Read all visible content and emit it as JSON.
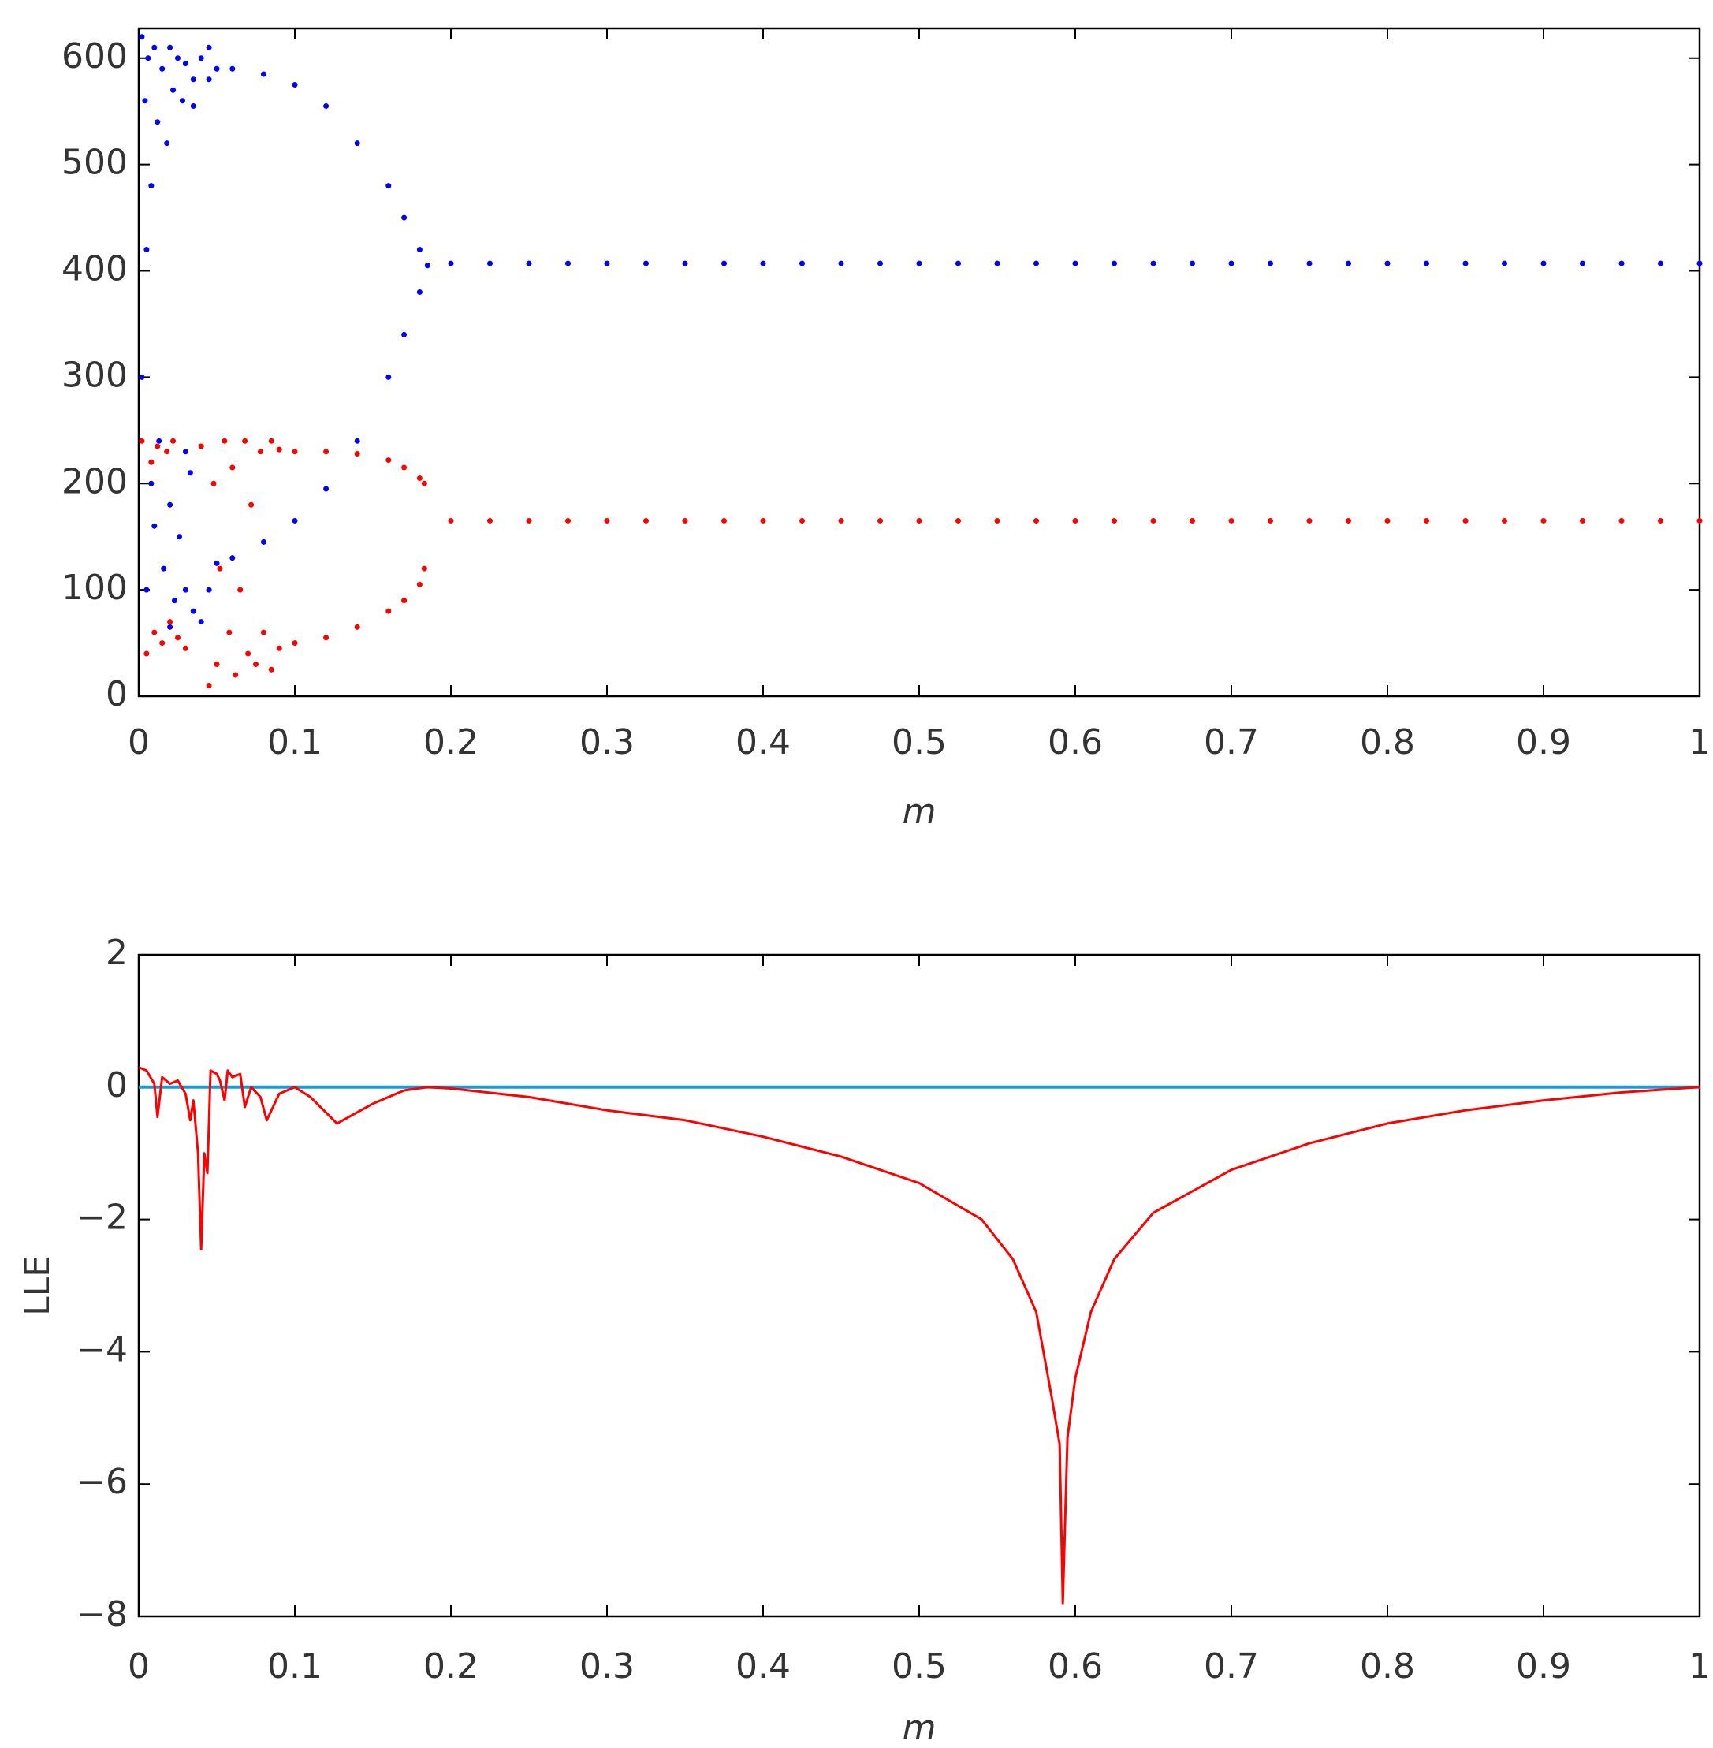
{
  "chart_data": [
    {
      "type": "scatter",
      "xlabel": "m",
      "xlim": [
        0,
        1
      ],
      "ylim": [
        0,
        628
      ],
      "xticks": [
        0,
        0.1,
        0.2,
        0.3,
        0.4,
        0.5,
        0.6,
        0.7,
        0.8,
        0.9,
        1
      ],
      "yticks": [
        0,
        100,
        200,
        300,
        400,
        500,
        600
      ],
      "series": [
        {
          "color": "#0000ff",
          "x": [
            0.002,
            0.004,
            0.006,
            0.008,
            0.01,
            0.012,
            0.015,
            0.018,
            0.02,
            0.022,
            0.025,
            0.028,
            0.03,
            0.035,
            0.04,
            0.045,
            0.002,
            0.005,
            0.008,
            0.01,
            0.013,
            0.016,
            0.02,
            0.023,
            0.026,
            0.03,
            0.033,
            0.035,
            0.04,
            0.045,
            0.02,
            0.03,
            0.005,
            0.035,
            0.045,
            0.05,
            0.06,
            0.08,
            0.1,
            0.12,
            0.14,
            0.16,
            0.17,
            0.18,
            0.185,
            0.05,
            0.06,
            0.08,
            0.1,
            0.12,
            0.14,
            0.16,
            0.17,
            0.18,
            0.2,
            0.225,
            0.25,
            0.275,
            0.3,
            0.325,
            0.35,
            0.375,
            0.4,
            0.425,
            0.45,
            0.475,
            0.5,
            0.525,
            0.55,
            0.575,
            0.6,
            0.625,
            0.65,
            0.675,
            0.7,
            0.725,
            0.75,
            0.775,
            0.8,
            0.825,
            0.85,
            0.875,
            0.9,
            0.925,
            0.95,
            0.975,
            1
          ],
          "values": [
            620,
            560,
            600,
            480,
            610,
            540,
            590,
            520,
            610,
            570,
            600,
            560,
            595,
            580,
            600,
            610,
            300,
            100,
            200,
            160,
            240,
            120,
            180,
            90,
            150,
            100,
            210,
            80,
            70,
            100,
            65,
            230,
            420,
            555,
            580,
            590,
            590,
            585,
            575,
            555,
            520,
            480,
            450,
            420,
            405,
            125,
            130,
            145,
            165,
            195,
            240,
            300,
            340,
            380,
            407,
            407,
            407,
            407,
            407,
            407,
            407,
            407,
            407,
            407,
            407,
            407,
            407,
            407,
            407,
            407,
            407,
            407,
            407,
            407,
            407,
            407,
            407,
            407,
            407,
            407,
            407,
            407,
            407,
            407,
            407,
            407,
            407
          ]
        },
        {
          "color": "#ff0000",
          "x": [
            0.002,
            0.005,
            0.008,
            0.01,
            0.012,
            0.015,
            0.018,
            0.02,
            0.022,
            0.025,
            0.03,
            0.04,
            0.045,
            0.048,
            0.05,
            0.052,
            0.055,
            0.058,
            0.06,
            0.062,
            0.065,
            0.068,
            0.07,
            0.072,
            0.075,
            0.078,
            0.08,
            0.085,
            0.085,
            0.09,
            0.1,
            0.12,
            0.14,
            0.16,
            0.17,
            0.18,
            0.183,
            0.09,
            0.1,
            0.12,
            0.14,
            0.16,
            0.17,
            0.18,
            0.183,
            0.2,
            0.225,
            0.25,
            0.275,
            0.3,
            0.325,
            0.35,
            0.375,
            0.4,
            0.425,
            0.45,
            0.475,
            0.5,
            0.525,
            0.55,
            0.575,
            0.6,
            0.625,
            0.65,
            0.675,
            0.7,
            0.725,
            0.75,
            0.775,
            0.8,
            0.825,
            0.85,
            0.875,
            0.9,
            0.925,
            0.95,
            0.975,
            1
          ],
          "values": [
            240,
            40,
            220,
            60,
            235,
            50,
            230,
            70,
            240,
            55,
            45,
            235,
            10,
            200,
            30,
            120,
            240,
            60,
            215,
            20,
            100,
            240,
            40,
            180,
            30,
            230,
            60,
            240,
            25,
            232,
            230,
            230,
            228,
            222,
            215,
            205,
            200,
            45,
            50,
            55,
            65,
            80,
            90,
            105,
            120,
            165,
            165,
            165,
            165,
            165,
            165,
            165,
            165,
            165,
            165,
            165,
            165,
            165,
            165,
            165,
            165,
            165,
            165,
            165,
            165,
            165,
            165,
            165,
            165,
            165,
            165,
            165,
            165,
            165,
            165,
            165,
            165,
            165
          ]
        }
      ]
    },
    {
      "type": "line",
      "xlabel": "m",
      "ylabel": "LLE",
      "xlim": [
        0,
        1
      ],
      "ylim": [
        -8,
        2
      ],
      "xticks": [
        0,
        0.1,
        0.2,
        0.3,
        0.4,
        0.5,
        0.6,
        0.7,
        0.8,
        0.9,
        1
      ],
      "yticks": [
        {
          "value": -8,
          "label": "−8"
        },
        {
          "value": -6,
          "label": "−6"
        },
        {
          "value": -4,
          "label": "−4"
        },
        {
          "value": -2,
          "label": "−2"
        },
        0,
        2
      ],
      "reference_line": {
        "value": 0,
        "color": "#1a9ad6"
      },
      "x": [
        0,
        0.005,
        0.01,
        0.012,
        0.015,
        0.02,
        0.025,
        0.03,
        0.033,
        0.035,
        0.038,
        0.04,
        0.042,
        0.044,
        0.046,
        0.05,
        0.052,
        0.055,
        0.057,
        0.06,
        0.065,
        0.068,
        0.072,
        0.078,
        0.082,
        0.09,
        0.1,
        0.11,
        0.127,
        0.15,
        0.17,
        0.185,
        0.2,
        0.25,
        0.3,
        0.35,
        0.4,
        0.45,
        0.5,
        0.54,
        0.56,
        0.575,
        0.585,
        0.59,
        0.592,
        0.595,
        0.6,
        0.61,
        0.625,
        0.65,
        0.7,
        0.75,
        0.8,
        0.85,
        0.9,
        0.95,
        1
      ],
      "series": [
        {
          "color": "#ff0000",
          "values": [
            0.3,
            0.25,
            0.05,
            -0.45,
            0.15,
            0.05,
            0.1,
            -0.1,
            -0.5,
            -0.2,
            -1.0,
            -2.45,
            -1.0,
            -1.3,
            0.25,
            0.2,
            0.1,
            -0.2,
            0.25,
            0.15,
            0.2,
            -0.3,
            0.0,
            -0.15,
            -0.5,
            -0.1,
            0.0,
            -0.15,
            -0.55,
            -0.25,
            -0.05,
            0.0,
            -0.02,
            -0.15,
            -0.35,
            -0.5,
            -0.75,
            -1.05,
            -1.45,
            -2.0,
            -2.6,
            -3.4,
            -4.7,
            -5.4,
            -7.8,
            -5.3,
            -4.4,
            -3.4,
            -2.6,
            -1.9,
            -1.25,
            -0.85,
            -0.55,
            -0.35,
            -0.2,
            -0.08,
            0
          ]
        }
      ]
    }
  ]
}
